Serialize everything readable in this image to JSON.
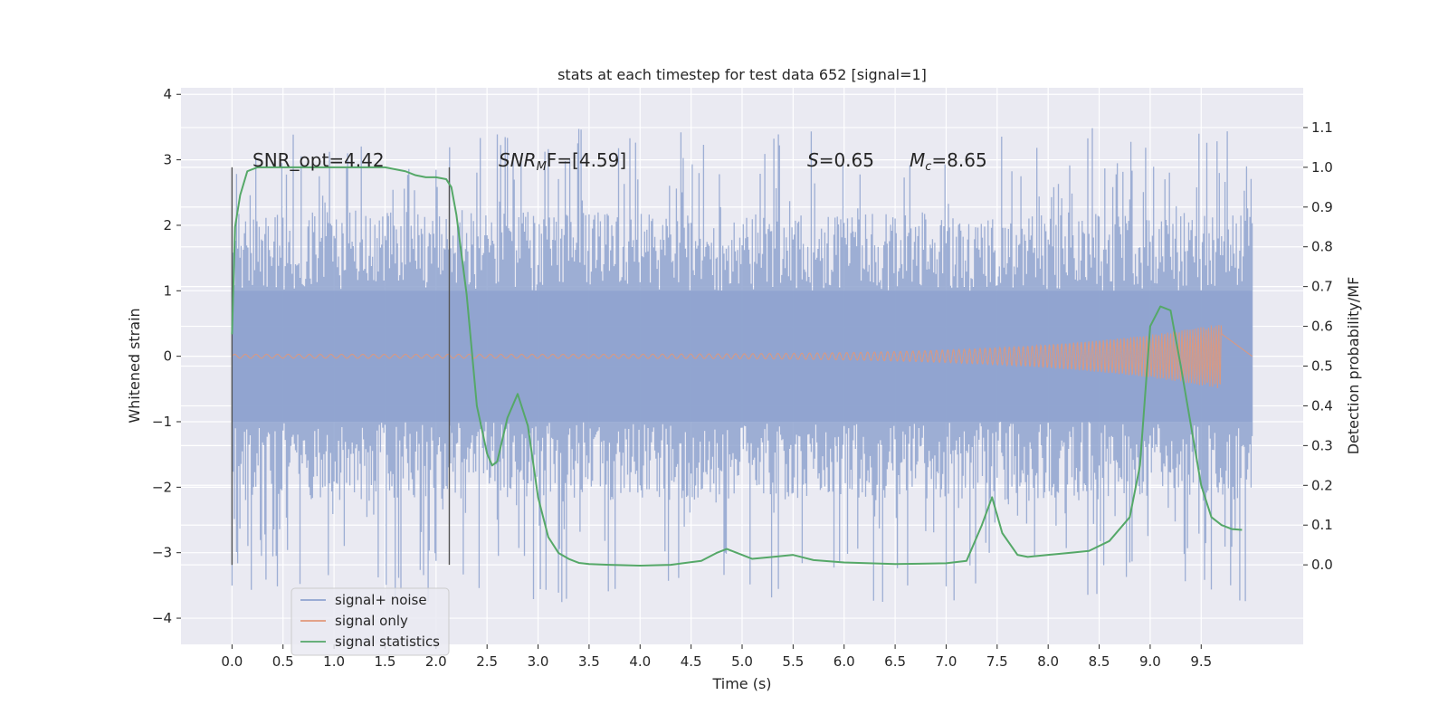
{
  "chart_data": {
    "type": "line",
    "title": "stats at each timestep for test data 652 [signal=1]",
    "xlabel": "Time (s)",
    "ylabel": "Whitened strain",
    "y2label": "Detection probability/MF",
    "xlim": [
      -0.5,
      10.5
    ],
    "ylim": [
      -4.4,
      4.1
    ],
    "y2lim": [
      -0.2,
      1.2
    ],
    "x_ticks": [
      "0.0",
      "0.5",
      "1.0",
      "1.5",
      "2.0",
      "2.5",
      "3.0",
      "3.5",
      "4.0",
      "4.5",
      "5.0",
      "5.5",
      "6.0",
      "6.5",
      "7.0",
      "7.5",
      "8.0",
      "8.5",
      "9.0",
      "9.5"
    ],
    "y_ticks": [
      "4",
      "3",
      "2",
      "1",
      "0",
      "−1",
      "−2",
      "−3",
      "−4"
    ],
    "y2_ticks": [
      "1.1",
      "1.0",
      "0.9",
      "0.8",
      "0.7",
      "0.6",
      "0.5",
      "0.4",
      "0.3",
      "0.2",
      "0.1",
      "0.0"
    ],
    "grid": true,
    "legend": "lower-left",
    "annotations": {
      "snr_opt": "SNR_opt=4.42",
      "snr_mf_var": "SNR",
      "snr_mf_sub": "M",
      "snr_mf_rest": "F=[4.59]",
      "s_var": "S",
      "s_rest": "=0.65",
      "mc_var": "M",
      "mc_sub": "c",
      "mc_rest": "=8.65"
    },
    "vlines": [
      0.0,
      2.13
    ],
    "noise_envelope": {
      "x": [
        0.0,
        10.0
      ],
      "core": [
        -1.0,
        1.0
      ],
      "typical": [
        -2.2,
        2.2
      ],
      "extremes": [
        -4.05,
        3.75
      ]
    },
    "series": [
      {
        "name": "signal+ noise",
        "color": "#8fa3cf"
      },
      {
        "name": "signal only",
        "color": "#e0987a",
        "amplitude_start": 0.03,
        "amplitude_peak": 0.5,
        "x_end": 9.7
      },
      {
        "name": "signal statistics",
        "color": "#55a868",
        "x": [
          0.0,
          0.03,
          0.08,
          0.15,
          0.25,
          0.4,
          0.7,
          1.0,
          1.3,
          1.5,
          1.7,
          1.8,
          1.9,
          2.0,
          2.1,
          2.15,
          2.2,
          2.3,
          2.4,
          2.5,
          2.55,
          2.6,
          2.7,
          2.8,
          2.9,
          3.0,
          3.1,
          3.2,
          3.3,
          3.4,
          3.5,
          3.7,
          4.0,
          4.3,
          4.6,
          4.75,
          4.85,
          4.95,
          5.1,
          5.3,
          5.5,
          5.7,
          6.0,
          6.5,
          7.0,
          7.2,
          7.35,
          7.45,
          7.55,
          7.7,
          7.8,
          8.0,
          8.2,
          8.4,
          8.6,
          8.8,
          8.9,
          9.0,
          9.1,
          9.2,
          9.3,
          9.4,
          9.5,
          9.6,
          9.7,
          9.8,
          9.9
        ],
        "values": [
          0.58,
          0.85,
          0.93,
          0.99,
          1.0,
          1.0,
          1.0,
          1.0,
          1.0,
          1.0,
          0.99,
          0.98,
          0.975,
          0.975,
          0.97,
          0.95,
          0.88,
          0.68,
          0.4,
          0.28,
          0.25,
          0.26,
          0.37,
          0.43,
          0.35,
          0.17,
          0.07,
          0.03,
          0.015,
          0.005,
          0.002,
          0.0,
          -0.002,
          0.0,
          0.01,
          0.03,
          0.04,
          0.03,
          0.015,
          0.02,
          0.025,
          0.012,
          0.006,
          0.002,
          0.004,
          0.01,
          0.1,
          0.17,
          0.08,
          0.025,
          0.02,
          0.025,
          0.03,
          0.035,
          0.06,
          0.12,
          0.25,
          0.6,
          0.65,
          0.64,
          0.5,
          0.35,
          0.2,
          0.12,
          0.1,
          0.09,
          0.088
        ]
      }
    ]
  }
}
